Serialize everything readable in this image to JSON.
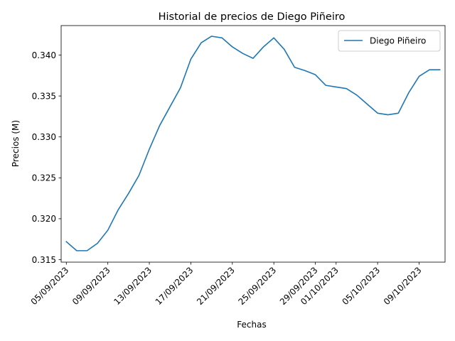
{
  "chart_data": {
    "type": "line",
    "title": "Historial de precios de Diego Piñeiro",
    "xlabel": "Fechas",
    "ylabel": "Precios (M)",
    "ylim": [
      0.3147,
      0.3436
    ],
    "yticks": [
      "0.315",
      "0.320",
      "0.325",
      "0.330",
      "0.335",
      "0.340"
    ],
    "ytick_values": [
      0.315,
      0.32,
      0.325,
      0.33,
      0.335,
      0.34
    ],
    "xticks": [
      {
        "date": "2023-09-05",
        "label": "05/09/2023"
      },
      {
        "date": "2023-09-09",
        "label": "09/09/2023"
      },
      {
        "date": "2023-09-13",
        "label": "13/09/2023"
      },
      {
        "date": "2023-09-17",
        "label": "17/09/2023"
      },
      {
        "date": "2023-09-21",
        "label": "21/09/2023"
      },
      {
        "date": "2023-09-25",
        "label": "25/09/2023"
      },
      {
        "date": "2023-09-29",
        "label": "29/09/2023"
      },
      {
        "date": "2023-10-01",
        "label": "01/10/2023"
      },
      {
        "date": "2023-10-05",
        "label": "05/10/2023"
      },
      {
        "date": "2023-10-09",
        "label": "09/10/2023"
      }
    ],
    "xlim": [
      "2023-09-04T12:00",
      "2023-10-11T12:00"
    ],
    "grid": false,
    "legend_position": "top-right",
    "color": "#1f77b4",
    "series": [
      {
        "name": "Diego Piñeiro",
        "x": [
          "2023-09-05",
          "2023-09-06",
          "2023-09-07",
          "2023-09-08",
          "2023-09-09",
          "2023-09-10",
          "2023-09-11",
          "2023-09-12",
          "2023-09-13",
          "2023-09-14",
          "2023-09-15",
          "2023-09-16",
          "2023-09-17",
          "2023-09-18",
          "2023-09-19",
          "2023-09-20",
          "2023-09-21",
          "2023-09-22",
          "2023-09-23",
          "2023-09-24",
          "2023-09-25",
          "2023-09-26",
          "2023-09-27",
          "2023-09-28",
          "2023-09-29",
          "2023-09-30",
          "2023-10-01",
          "2023-10-02",
          "2023-10-03",
          "2023-10-04",
          "2023-10-05",
          "2023-10-06",
          "2023-10-07",
          "2023-10-08",
          "2023-10-09",
          "2023-10-10",
          "2023-10-11"
        ],
        "y": [
          0.3172,
          0.3161,
          0.3161,
          0.317,
          0.3186,
          0.3211,
          0.3231,
          0.3253,
          0.3285,
          0.3314,
          0.3337,
          0.336,
          0.3395,
          0.3415,
          0.3423,
          0.3421,
          0.341,
          0.3402,
          0.3396,
          0.341,
          0.3421,
          0.3407,
          0.3385,
          0.3381,
          0.3376,
          0.3363,
          0.3361,
          0.3359,
          0.3351,
          0.334,
          0.3329,
          0.3327,
          0.3329,
          0.3354,
          0.3374,
          0.3382,
          0.3382
        ]
      }
    ]
  }
}
